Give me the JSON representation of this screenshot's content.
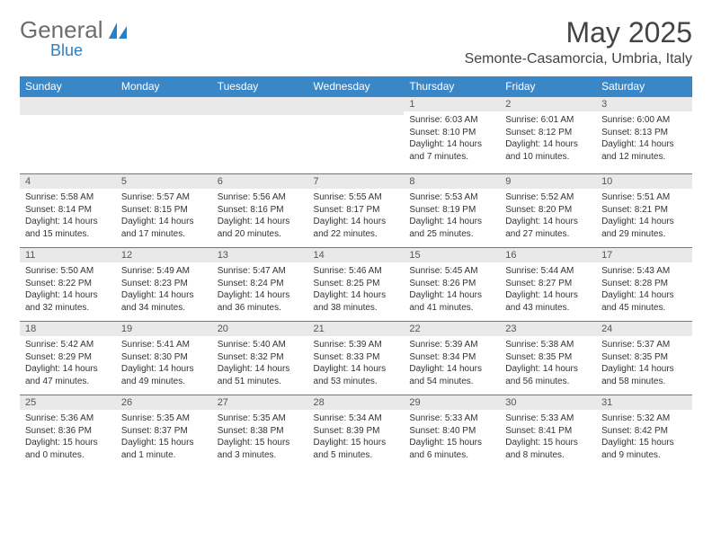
{
  "branding": {
    "word1": "General",
    "word2": "Blue",
    "word1_color": "#6d6d6d",
    "word2_color": "#2d7fc4",
    "sail_color": "#2d7fc4"
  },
  "title": "May 2025",
  "location": "Semonte-Casamorcia, Umbria, Italy",
  "colors": {
    "header_bg": "#3a87c8",
    "header_fg": "#ffffff",
    "daynum_bg": "#e9e9e9",
    "border": "#3a87c8",
    "text": "#333333"
  },
  "weekdays": [
    "Sunday",
    "Monday",
    "Tuesday",
    "Wednesday",
    "Thursday",
    "Friday",
    "Saturday"
  ],
  "weeks": [
    [
      {
        "empty": true
      },
      {
        "empty": true
      },
      {
        "empty": true
      },
      {
        "empty": true
      },
      {
        "n": "1",
        "sr": "Sunrise: 6:03 AM",
        "ss": "Sunset: 8:10 PM",
        "d1": "Daylight: 14 hours",
        "d2": "and 7 minutes."
      },
      {
        "n": "2",
        "sr": "Sunrise: 6:01 AM",
        "ss": "Sunset: 8:12 PM",
        "d1": "Daylight: 14 hours",
        "d2": "and 10 minutes."
      },
      {
        "n": "3",
        "sr": "Sunrise: 6:00 AM",
        "ss": "Sunset: 8:13 PM",
        "d1": "Daylight: 14 hours",
        "d2": "and 12 minutes."
      }
    ],
    [
      {
        "n": "4",
        "sr": "Sunrise: 5:58 AM",
        "ss": "Sunset: 8:14 PM",
        "d1": "Daylight: 14 hours",
        "d2": "and 15 minutes."
      },
      {
        "n": "5",
        "sr": "Sunrise: 5:57 AM",
        "ss": "Sunset: 8:15 PM",
        "d1": "Daylight: 14 hours",
        "d2": "and 17 minutes."
      },
      {
        "n": "6",
        "sr": "Sunrise: 5:56 AM",
        "ss": "Sunset: 8:16 PM",
        "d1": "Daylight: 14 hours",
        "d2": "and 20 minutes."
      },
      {
        "n": "7",
        "sr": "Sunrise: 5:55 AM",
        "ss": "Sunset: 8:17 PM",
        "d1": "Daylight: 14 hours",
        "d2": "and 22 minutes."
      },
      {
        "n": "8",
        "sr": "Sunrise: 5:53 AM",
        "ss": "Sunset: 8:19 PM",
        "d1": "Daylight: 14 hours",
        "d2": "and 25 minutes."
      },
      {
        "n": "9",
        "sr": "Sunrise: 5:52 AM",
        "ss": "Sunset: 8:20 PM",
        "d1": "Daylight: 14 hours",
        "d2": "and 27 minutes."
      },
      {
        "n": "10",
        "sr": "Sunrise: 5:51 AM",
        "ss": "Sunset: 8:21 PM",
        "d1": "Daylight: 14 hours",
        "d2": "and 29 minutes."
      }
    ],
    [
      {
        "n": "11",
        "sr": "Sunrise: 5:50 AM",
        "ss": "Sunset: 8:22 PM",
        "d1": "Daylight: 14 hours",
        "d2": "and 32 minutes."
      },
      {
        "n": "12",
        "sr": "Sunrise: 5:49 AM",
        "ss": "Sunset: 8:23 PM",
        "d1": "Daylight: 14 hours",
        "d2": "and 34 minutes."
      },
      {
        "n": "13",
        "sr": "Sunrise: 5:47 AM",
        "ss": "Sunset: 8:24 PM",
        "d1": "Daylight: 14 hours",
        "d2": "and 36 minutes."
      },
      {
        "n": "14",
        "sr": "Sunrise: 5:46 AM",
        "ss": "Sunset: 8:25 PM",
        "d1": "Daylight: 14 hours",
        "d2": "and 38 minutes."
      },
      {
        "n": "15",
        "sr": "Sunrise: 5:45 AM",
        "ss": "Sunset: 8:26 PM",
        "d1": "Daylight: 14 hours",
        "d2": "and 41 minutes."
      },
      {
        "n": "16",
        "sr": "Sunrise: 5:44 AM",
        "ss": "Sunset: 8:27 PM",
        "d1": "Daylight: 14 hours",
        "d2": "and 43 minutes."
      },
      {
        "n": "17",
        "sr": "Sunrise: 5:43 AM",
        "ss": "Sunset: 8:28 PM",
        "d1": "Daylight: 14 hours",
        "d2": "and 45 minutes."
      }
    ],
    [
      {
        "n": "18",
        "sr": "Sunrise: 5:42 AM",
        "ss": "Sunset: 8:29 PM",
        "d1": "Daylight: 14 hours",
        "d2": "and 47 minutes."
      },
      {
        "n": "19",
        "sr": "Sunrise: 5:41 AM",
        "ss": "Sunset: 8:30 PM",
        "d1": "Daylight: 14 hours",
        "d2": "and 49 minutes."
      },
      {
        "n": "20",
        "sr": "Sunrise: 5:40 AM",
        "ss": "Sunset: 8:32 PM",
        "d1": "Daylight: 14 hours",
        "d2": "and 51 minutes."
      },
      {
        "n": "21",
        "sr": "Sunrise: 5:39 AM",
        "ss": "Sunset: 8:33 PM",
        "d1": "Daylight: 14 hours",
        "d2": "and 53 minutes."
      },
      {
        "n": "22",
        "sr": "Sunrise: 5:39 AM",
        "ss": "Sunset: 8:34 PM",
        "d1": "Daylight: 14 hours",
        "d2": "and 54 minutes."
      },
      {
        "n": "23",
        "sr": "Sunrise: 5:38 AM",
        "ss": "Sunset: 8:35 PM",
        "d1": "Daylight: 14 hours",
        "d2": "and 56 minutes."
      },
      {
        "n": "24",
        "sr": "Sunrise: 5:37 AM",
        "ss": "Sunset: 8:35 PM",
        "d1": "Daylight: 14 hours",
        "d2": "and 58 minutes."
      }
    ],
    [
      {
        "n": "25",
        "sr": "Sunrise: 5:36 AM",
        "ss": "Sunset: 8:36 PM",
        "d1": "Daylight: 15 hours",
        "d2": "and 0 minutes."
      },
      {
        "n": "26",
        "sr": "Sunrise: 5:35 AM",
        "ss": "Sunset: 8:37 PM",
        "d1": "Daylight: 15 hours",
        "d2": "and 1 minute."
      },
      {
        "n": "27",
        "sr": "Sunrise: 5:35 AM",
        "ss": "Sunset: 8:38 PM",
        "d1": "Daylight: 15 hours",
        "d2": "and 3 minutes."
      },
      {
        "n": "28",
        "sr": "Sunrise: 5:34 AM",
        "ss": "Sunset: 8:39 PM",
        "d1": "Daylight: 15 hours",
        "d2": "and 5 minutes."
      },
      {
        "n": "29",
        "sr": "Sunrise: 5:33 AM",
        "ss": "Sunset: 8:40 PM",
        "d1": "Daylight: 15 hours",
        "d2": "and 6 minutes."
      },
      {
        "n": "30",
        "sr": "Sunrise: 5:33 AM",
        "ss": "Sunset: 8:41 PM",
        "d1": "Daylight: 15 hours",
        "d2": "and 8 minutes."
      },
      {
        "n": "31",
        "sr": "Sunrise: 5:32 AM",
        "ss": "Sunset: 8:42 PM",
        "d1": "Daylight: 15 hours",
        "d2": "and 9 minutes."
      }
    ]
  ]
}
